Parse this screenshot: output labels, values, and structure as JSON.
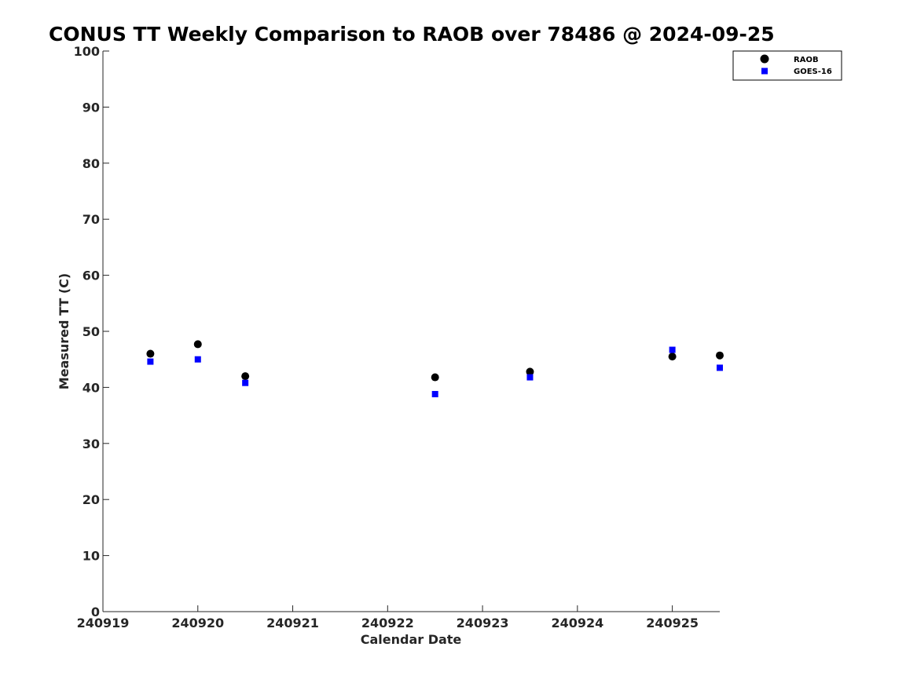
{
  "chart_data": {
    "type": "scatter",
    "title": "CONUS TT Weekly Comparison to RAOB over 78486 @ 2024-09-25",
    "xlabel": "Calendar Date",
    "ylabel": "Measured TT (C)",
    "xlim": [
      240919,
      240925.5
    ],
    "ylim": [
      0,
      100
    ],
    "x_ticks": [
      240919,
      240920,
      240921,
      240922,
      240923,
      240924,
      240925
    ],
    "x_tick_labels": [
      "240919",
      "240920",
      "240921",
      "240922",
      "240923",
      "240924",
      "240925"
    ],
    "y_ticks": [
      0,
      10,
      20,
      30,
      40,
      50,
      60,
      70,
      80,
      90,
      100
    ],
    "y_tick_labels": [
      "0",
      "10",
      "20",
      "30",
      "40",
      "50",
      "60",
      "70",
      "80",
      "90",
      "100"
    ],
    "grid": false,
    "legend_position": "top-right",
    "series": [
      {
        "name": "RAOB",
        "marker": "circle",
        "color": "#000000",
        "points": [
          {
            "x": 240919.5,
            "y": 46.0
          },
          {
            "x": 240920.0,
            "y": 47.7
          },
          {
            "x": 240920.5,
            "y": 42.0
          },
          {
            "x": 240922.5,
            "y": 41.8
          },
          {
            "x": 240923.5,
            "y": 42.8
          },
          {
            "x": 240925.0,
            "y": 45.5
          },
          {
            "x": 240925.5,
            "y": 45.7
          }
        ]
      },
      {
        "name": "GOES-16",
        "marker": "square",
        "color": "#0000ff",
        "points": [
          {
            "x": 240919.5,
            "y": 44.6
          },
          {
            "x": 240920.0,
            "y": 45.0
          },
          {
            "x": 240920.5,
            "y": 40.8
          },
          {
            "x": 240922.5,
            "y": 38.8
          },
          {
            "x": 240923.5,
            "y": 41.8
          },
          {
            "x": 240925.0,
            "y": 46.7
          },
          {
            "x": 240925.5,
            "y": 43.5
          }
        ]
      }
    ]
  }
}
